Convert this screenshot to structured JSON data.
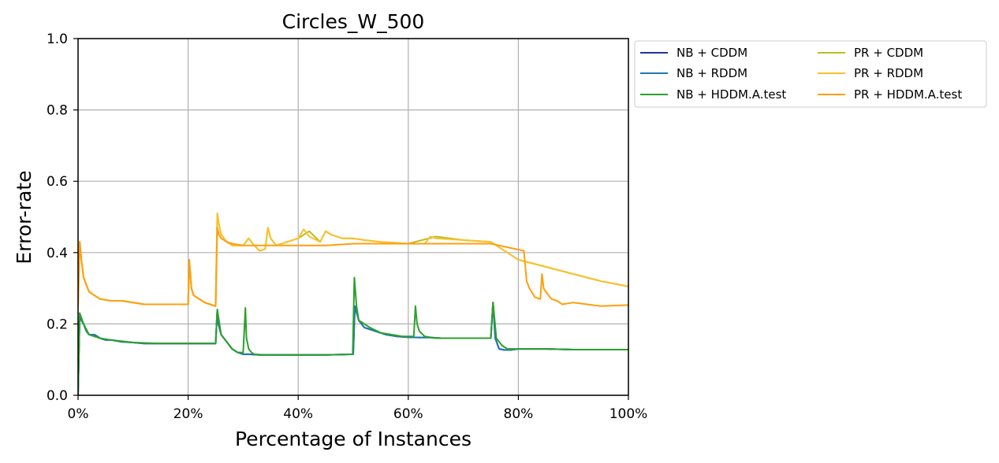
{
  "chart_data": {
    "type": "line",
    "title": "Circles_W_500",
    "xlabel": "Percentage of Instances",
    "ylabel": "Error-rate",
    "xlim": [
      0,
      100
    ],
    "ylim": [
      0,
      1.0
    ],
    "x_ticks": [
      0,
      20,
      40,
      60,
      80,
      100
    ],
    "x_tick_labels": [
      "0%",
      "20%",
      "40%",
      "60%",
      "80%",
      "100%"
    ],
    "y_ticks": [
      0.0,
      0.2,
      0.4,
      0.6,
      0.8,
      1.0
    ],
    "y_tick_labels": [
      "0.0",
      "0.2",
      "0.4",
      "0.6",
      "0.8",
      "1.0"
    ],
    "grid": true,
    "legend_position": "outside-right-top",
    "legend_columns": 2,
    "series": [
      {
        "name": "NB + CDDM",
        "color": "#2134a0",
        "x": [
          0,
          0.3,
          0.6,
          1,
          1.5,
          2,
          3,
          4,
          5,
          6,
          8,
          10,
          12,
          15,
          20,
          25,
          25.3,
          25.5,
          26,
          27,
          28,
          29,
          30,
          31,
          33,
          35,
          40,
          45,
          50,
          50.3,
          51,
          52,
          54,
          56,
          58,
          60,
          62,
          64,
          66,
          68,
          70,
          72,
          74,
          75,
          75.4,
          75.8,
          76.5,
          77.5,
          78.5,
          80,
          82,
          85,
          90,
          95,
          100
        ],
        "y": [
          0.0,
          0.23,
          0.21,
          0.2,
          0.18,
          0.17,
          0.17,
          0.16,
          0.155,
          0.155,
          0.15,
          0.148,
          0.145,
          0.145,
          0.145,
          0.145,
          0.24,
          0.2,
          0.17,
          0.15,
          0.13,
          0.12,
          0.115,
          0.115,
          0.113,
          0.113,
          0.113,
          0.113,
          0.115,
          0.25,
          0.21,
          0.19,
          0.18,
          0.17,
          0.165,
          0.163,
          0.162,
          0.162,
          0.16,
          0.16,
          0.16,
          0.16,
          0.16,
          0.16,
          0.26,
          0.16,
          0.13,
          0.127,
          0.127,
          0.13,
          0.13,
          0.13,
          0.128,
          0.128,
          0.128
        ]
      },
      {
        "name": "NB + RDDM",
        "color": "#1f77b4",
        "x": [
          0,
          0.3,
          0.6,
          1,
          1.5,
          2,
          3,
          4,
          5,
          6,
          8,
          10,
          12,
          15,
          20,
          25,
          25.3,
          25.5,
          26,
          27,
          28,
          29,
          30,
          31,
          33,
          35,
          40,
          45,
          50,
          50.3,
          51,
          52,
          54,
          56,
          58,
          60,
          62,
          64,
          66,
          68,
          70,
          72,
          74,
          75,
          75.4,
          75.8,
          76.5,
          77.5,
          78.5,
          80,
          82,
          85,
          90,
          95,
          100
        ],
        "y": [
          0.0,
          0.23,
          0.21,
          0.2,
          0.18,
          0.17,
          0.17,
          0.16,
          0.155,
          0.155,
          0.15,
          0.148,
          0.145,
          0.145,
          0.145,
          0.145,
          0.24,
          0.2,
          0.17,
          0.15,
          0.13,
          0.12,
          0.115,
          0.115,
          0.113,
          0.113,
          0.113,
          0.113,
          0.115,
          0.25,
          0.21,
          0.19,
          0.18,
          0.17,
          0.165,
          0.163,
          0.162,
          0.162,
          0.16,
          0.16,
          0.16,
          0.16,
          0.16,
          0.16,
          0.26,
          0.16,
          0.13,
          0.127,
          0.127,
          0.13,
          0.13,
          0.13,
          0.128,
          0.128,
          0.128
        ]
      },
      {
        "name": "NB + HDDM.A.test",
        "color": "#2ca02c",
        "x": [
          0,
          0.3,
          1,
          2,
          4,
          6,
          10,
          15,
          20,
          25,
          25.3,
          26,
          27,
          28,
          29,
          30,
          30.4,
          30.6,
          31,
          31.5,
          32,
          34,
          36,
          40,
          45,
          49.9,
          50.2,
          50.6,
          51,
          52,
          53,
          55,
          57,
          59,
          61,
          61.3,
          61.6,
          62,
          63,
          65,
          70,
          75,
          75.4,
          76,
          77,
          78,
          80,
          85,
          90,
          100
        ],
        "y": [
          0.0,
          0.23,
          0.2,
          0.17,
          0.16,
          0.155,
          0.148,
          0.145,
          0.145,
          0.145,
          0.24,
          0.17,
          0.15,
          0.13,
          0.12,
          0.12,
          0.245,
          0.16,
          0.13,
          0.12,
          0.115,
          0.113,
          0.113,
          0.113,
          0.113,
          0.115,
          0.33,
          0.25,
          0.21,
          0.2,
          0.19,
          0.175,
          0.17,
          0.165,
          0.165,
          0.25,
          0.2,
          0.18,
          0.165,
          0.16,
          0.16,
          0.16,
          0.26,
          0.16,
          0.14,
          0.13,
          0.13,
          0.13,
          0.128,
          0.128
        ]
      },
      {
        "name": "PR + CDDM",
        "color": "#bcbd22",
        "x": [
          0,
          0.3,
          0.6,
          1,
          1.5,
          2,
          3,
          4,
          6,
          8,
          10,
          12,
          15,
          20,
          20.2,
          20.6,
          21,
          22,
          23,
          24,
          25,
          25.3,
          25.6,
          26,
          27,
          28,
          30,
          31,
          32,
          33,
          34,
          34.5,
          35,
          36,
          37,
          38,
          40,
          42,
          44,
          45,
          46,
          48,
          50,
          52,
          55,
          60,
          65,
          70,
          75,
          78,
          80,
          85,
          90,
          95,
          100
        ],
        "y": [
          0.25,
          0.43,
          0.38,
          0.33,
          0.31,
          0.29,
          0.28,
          0.27,
          0.265,
          0.265,
          0.26,
          0.255,
          0.255,
          0.255,
          0.38,
          0.3,
          0.28,
          0.27,
          0.26,
          0.255,
          0.25,
          0.51,
          0.48,
          0.45,
          0.43,
          0.42,
          0.42,
          0.44,
          0.42,
          0.405,
          0.41,
          0.47,
          0.44,
          0.42,
          0.425,
          0.43,
          0.44,
          0.46,
          0.43,
          0.46,
          0.45,
          0.44,
          0.44,
          0.435,
          0.43,
          0.425,
          0.445,
          0.435,
          0.43,
          0.4,
          0.38,
          0.36,
          0.34,
          0.32,
          0.305
        ]
      },
      {
        "name": "PR + RDDM",
        "color": "#fbc02d",
        "x": [
          0,
          0.3,
          0.6,
          1,
          1.5,
          2,
          3,
          4,
          6,
          8,
          10,
          12,
          15,
          20,
          20.2,
          20.6,
          21,
          22,
          23,
          24,
          25,
          25.3,
          25.6,
          26,
          27,
          28,
          30,
          31,
          32,
          33,
          34,
          34.5,
          35,
          36,
          37,
          38,
          40,
          41,
          42,
          44,
          45,
          46,
          48,
          50,
          52,
          55,
          60,
          63,
          64,
          65,
          70,
          75,
          78,
          80,
          85,
          90,
          95,
          100
        ],
        "y": [
          0.25,
          0.43,
          0.38,
          0.33,
          0.31,
          0.29,
          0.28,
          0.27,
          0.265,
          0.265,
          0.26,
          0.255,
          0.255,
          0.255,
          0.38,
          0.3,
          0.28,
          0.27,
          0.26,
          0.255,
          0.25,
          0.51,
          0.48,
          0.45,
          0.43,
          0.42,
          0.42,
          0.44,
          0.42,
          0.405,
          0.41,
          0.47,
          0.44,
          0.42,
          0.425,
          0.43,
          0.44,
          0.465,
          0.445,
          0.43,
          0.46,
          0.45,
          0.44,
          0.44,
          0.435,
          0.43,
          0.425,
          0.425,
          0.445,
          0.44,
          0.435,
          0.43,
          0.4,
          0.38,
          0.36,
          0.34,
          0.32,
          0.305
        ]
      },
      {
        "name": "PR + HDDM.A.test",
        "color": "#ff9f0e",
        "x": [
          0,
          0.3,
          0.6,
          1,
          1.5,
          2,
          3,
          4,
          6,
          8,
          10,
          12,
          15,
          20,
          20.2,
          20.6,
          21,
          22,
          23,
          24,
          25,
          25.3,
          25.6,
          26,
          27,
          28,
          30,
          35,
          40,
          45,
          50,
          55,
          60,
          65,
          70,
          75,
          78,
          81,
          81.5,
          82,
          83,
          84,
          84.3,
          84.6,
          85,
          86,
          87,
          88,
          90,
          95,
          100
        ],
        "y": [
          0.25,
          0.43,
          0.38,
          0.33,
          0.31,
          0.29,
          0.28,
          0.27,
          0.265,
          0.265,
          0.26,
          0.255,
          0.255,
          0.255,
          0.38,
          0.3,
          0.28,
          0.27,
          0.26,
          0.255,
          0.25,
          0.47,
          0.45,
          0.44,
          0.43,
          0.425,
          0.42,
          0.42,
          0.42,
          0.42,
          0.425,
          0.425,
          0.425,
          0.425,
          0.425,
          0.425,
          0.415,
          0.405,
          0.32,
          0.3,
          0.275,
          0.27,
          0.34,
          0.3,
          0.29,
          0.27,
          0.265,
          0.255,
          0.26,
          0.25,
          0.253
        ]
      }
    ]
  }
}
